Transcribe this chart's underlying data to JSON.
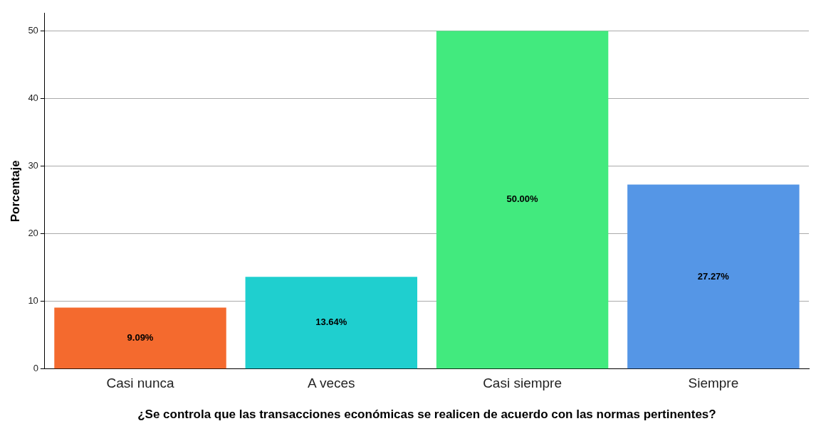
{
  "chart_data": {
    "type": "bar",
    "xlabel": "¿Se controla que las transacciones económicas se realicen de acuerdo con las normas pertinentes?",
    "ylabel": "Porcentaje",
    "categories": [
      "Casi nunca",
      "A veces",
      "Casi siempre",
      "Siempre"
    ],
    "values": [
      9.09,
      13.64,
      50,
      27.27
    ],
    "colors": [
      "#f46a2e",
      "#1fcfcf",
      "#42ea7e",
      "#5596e6"
    ],
    "value_labels": [
      "9.09%",
      "13.64%",
      "50.00%",
      "27.27%"
    ],
    "ylim": [
      0,
      52.6
    ],
    "yticks": [
      0,
      10,
      20,
      30,
      40,
      50
    ],
    "grid": "y",
    "legend": false
  }
}
